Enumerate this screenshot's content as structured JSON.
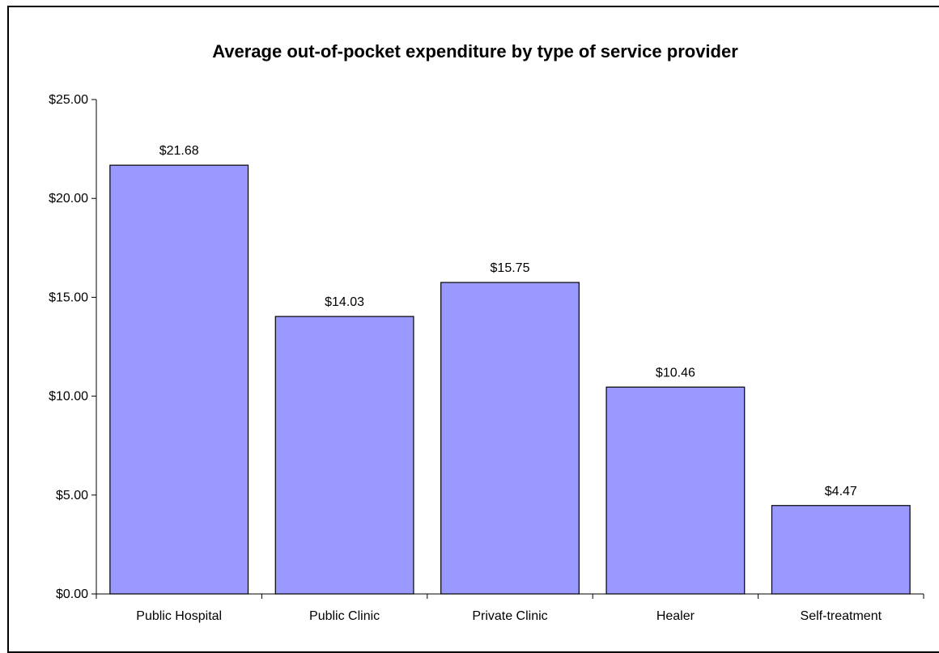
{
  "chart_data": {
    "type": "bar",
    "title": "Average out-of-pocket expenditure by type of service provider",
    "xlabel": "",
    "ylabel": "",
    "categories": [
      "Public Hospital",
      "Public Clinic",
      "Private Clinic",
      "Healer",
      "Self-treatment"
    ],
    "values": [
      21.68,
      14.03,
      15.75,
      10.46,
      4.47
    ],
    "data_labels": [
      "$21.68",
      "$14.03",
      "$15.75",
      "$10.46",
      "$4.47"
    ],
    "ylim": [
      0,
      25
    ],
    "yticks": [
      0,
      5,
      10,
      15,
      20,
      25
    ],
    "ytick_labels": [
      "$0.00",
      "$5.00",
      "$10.00",
      "$15.00",
      "$20.00",
      "$25.00"
    ],
    "grid": false,
    "legend": "none",
    "bar_color": "#9999ff",
    "bar_edge_color": "#000000"
  }
}
